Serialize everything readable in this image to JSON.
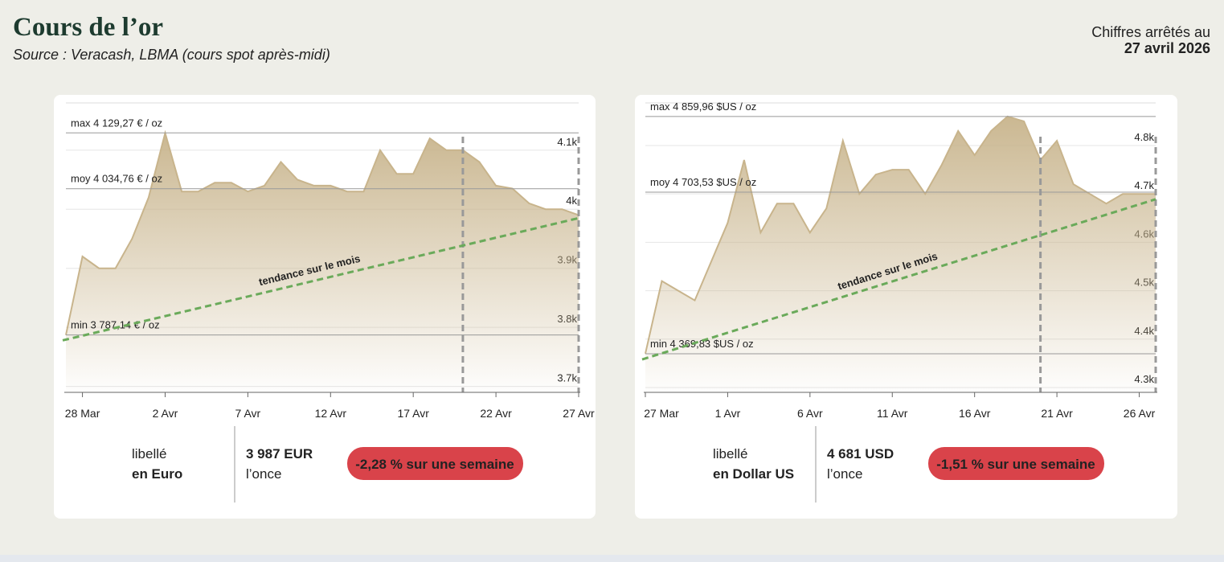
{
  "header": {
    "title": "Cours de l’or",
    "source": "Source : Veracash, LBMA (cours spot après-midi)",
    "as_of_label": "Chiffres arrêtés au",
    "as_of_date": "27 avril 2026"
  },
  "panels": [
    {
      "label": "libellé",
      "currency": "en Euro",
      "price": "3 987 EUR",
      "per": "l’once",
      "change": "-2,28 % sur une semaine"
    },
    {
      "label": "libellé",
      "currency": "en Dollar US",
      "price": "4 681 USD",
      "per": "l’once",
      "change": "-1,51 % sur une semaine"
    }
  ],
  "chart_data": [
    {
      "type": "area",
      "color": "#c8b48c",
      "categories": [
        null,
        "28 Mar",
        null,
        null,
        null,
        null,
        "2 Avr",
        null,
        null,
        null,
        null,
        "7 Avr",
        null,
        null,
        null,
        null,
        "12 Avr",
        null,
        null,
        null,
        null,
        "17 Avr",
        null,
        null,
        null,
        null,
        "22 Avr",
        null,
        null,
        null,
        null,
        "27 Avr"
      ],
      "values": [
        3787,
        3920,
        3900,
        3900,
        3950,
        4020,
        4129,
        4030,
        4030,
        4045,
        4045,
        4030,
        4040,
        4080,
        4050,
        4040,
        4040,
        4030,
        4030,
        4100,
        4060,
        4060,
        4120,
        4100,
        4100,
        4080,
        4040,
        4035,
        4010,
        4000,
        4000,
        3990
      ],
      "ylim": [
        3690,
        4180
      ],
      "yticks": [
        {
          "value": 3700,
          "label": "3.7k"
        },
        {
          "value": 3800,
          "label": "3.8k"
        },
        {
          "value": 3900,
          "label": "3.9k"
        },
        {
          "value": 4000,
          "label": "4k"
        },
        {
          "value": 4100,
          "label": "4.1k"
        }
      ],
      "reference_lines": [
        {
          "value": 4129.27,
          "label": "max 4 129,27 € / oz"
        },
        {
          "value": 4034.76,
          "label": "moy 4 034,76 € / oz"
        },
        {
          "value": 3787.14,
          "label": "min 3 787,14 € / oz"
        }
      ],
      "trend": {
        "label": "tendance sur le mois",
        "start": 3778,
        "end": 3985,
        "color": "#6aaa5a"
      }
    },
    {
      "type": "area",
      "color": "#c8b48c",
      "categories": [
        "27 Mar",
        null,
        null,
        null,
        null,
        "1 Avr",
        null,
        null,
        null,
        null,
        "6 Avr",
        null,
        null,
        null,
        null,
        "11 Avr",
        null,
        null,
        null,
        null,
        "16 Avr",
        null,
        null,
        null,
        null,
        "21 Avr",
        null,
        null,
        null,
        null,
        "26 Avr",
        null
      ],
      "values": [
        4370,
        4520,
        4500,
        4480,
        4560,
        4640,
        4770,
        4620,
        4680,
        4680,
        4620,
        4670,
        4810,
        4700,
        4740,
        4750,
        4750,
        4700,
        4760,
        4830,
        4780,
        4830,
        4860,
        4850,
        4770,
        4810,
        4720,
        4700,
        4680,
        4700,
        4700,
        4700
      ],
      "ylim": [
        4290,
        4888
      ],
      "yticks": [
        {
          "value": 4300,
          "label": "4.3k"
        },
        {
          "value": 4400,
          "label": "4.4k"
        },
        {
          "value": 4500,
          "label": "4.5k"
        },
        {
          "value": 4600,
          "label": "4.6k"
        },
        {
          "value": 4700,
          "label": "4.7k"
        },
        {
          "value": 4800,
          "label": "4.8k"
        }
      ],
      "reference_lines": [
        {
          "value": 4859.96,
          "label": "max 4 859,96 $US / oz"
        },
        {
          "value": 4703.53,
          "label": "moy 4 703,53 $US / oz"
        },
        {
          "value": 4369.83,
          "label": "min 4 369,83 $US / oz"
        }
      ],
      "trend": {
        "label": "tendance sur le mois",
        "start": 4358,
        "end": 4689,
        "color": "#6aaa5a"
      }
    }
  ]
}
